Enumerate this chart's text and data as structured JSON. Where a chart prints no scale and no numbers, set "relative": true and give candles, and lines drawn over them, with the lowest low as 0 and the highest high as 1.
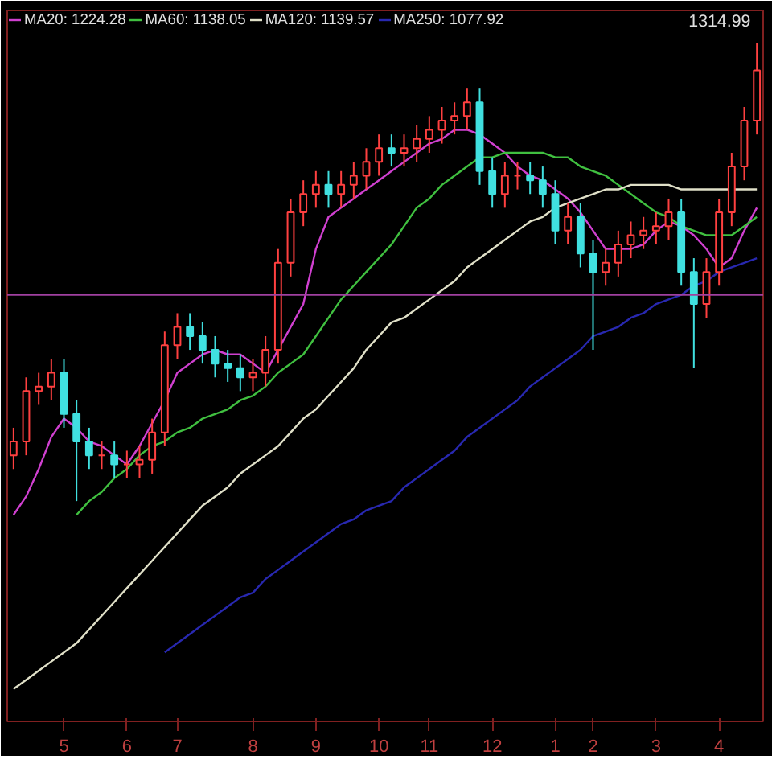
{
  "chart_data": {
    "type": "candlestick",
    "relative": true,
    "categories": [
      null,
      null,
      null,
      null,
      "5",
      null,
      null,
      null,
      null,
      "6",
      null,
      null,
      null,
      "7",
      null,
      null,
      null,
      null,
      null,
      "8",
      null,
      null,
      null,
      null,
      "9",
      null,
      null,
      null,
      null,
      "10",
      null,
      null,
      null,
      "11",
      null,
      null,
      null,
      null,
      "12",
      null,
      null,
      null,
      null,
      "1",
      null,
      null,
      "2",
      null,
      null,
      null,
      null,
      "3",
      null,
      null,
      null,
      null,
      "4",
      null,
      null,
      null
    ],
    "ohlc": [
      [
        0.1,
        0.16,
        0.07,
        0.13
      ],
      [
        0.13,
        0.27,
        0.1,
        0.24
      ],
      [
        0.24,
        0.28,
        0.21,
        0.25
      ],
      [
        0.25,
        0.31,
        0.22,
        0.28
      ],
      [
        0.28,
        0.31,
        0.16,
        0.19
      ],
      [
        0.19,
        0.22,
        0.0,
        0.13
      ],
      [
        0.13,
        0.16,
        0.07,
        0.1
      ],
      [
        0.1,
        0.13,
        0.07,
        0.1
      ],
      [
        0.1,
        0.13,
        0.05,
        0.08
      ],
      [
        0.08,
        0.11,
        0.05,
        0.08
      ],
      [
        0.08,
        0.12,
        0.05,
        0.09
      ],
      [
        0.09,
        0.18,
        0.06,
        0.15
      ],
      [
        0.15,
        0.37,
        0.12,
        0.34
      ],
      [
        0.34,
        0.41,
        0.31,
        0.38
      ],
      [
        0.38,
        0.41,
        0.33,
        0.36
      ],
      [
        0.36,
        0.39,
        0.3,
        0.33
      ],
      [
        0.33,
        0.36,
        0.27,
        0.3
      ],
      [
        0.3,
        0.33,
        0.26,
        0.29
      ],
      [
        0.29,
        0.32,
        0.24,
        0.27
      ],
      [
        0.27,
        0.31,
        0.24,
        0.28
      ],
      [
        0.28,
        0.36,
        0.25,
        0.33
      ],
      [
        0.33,
        0.55,
        0.3,
        0.52
      ],
      [
        0.52,
        0.66,
        0.49,
        0.63
      ],
      [
        0.63,
        0.7,
        0.6,
        0.67
      ],
      [
        0.67,
        0.72,
        0.64,
        0.69
      ],
      [
        0.69,
        0.72,
        0.64,
        0.67
      ],
      [
        0.67,
        0.72,
        0.64,
        0.69
      ],
      [
        0.69,
        0.74,
        0.66,
        0.71
      ],
      [
        0.71,
        0.77,
        0.68,
        0.74
      ],
      [
        0.74,
        0.8,
        0.71,
        0.77
      ],
      [
        0.77,
        0.8,
        0.73,
        0.76
      ],
      [
        0.76,
        0.8,
        0.73,
        0.77
      ],
      [
        0.77,
        0.82,
        0.74,
        0.79
      ],
      [
        0.79,
        0.84,
        0.76,
        0.81
      ],
      [
        0.81,
        0.86,
        0.78,
        0.83
      ],
      [
        0.83,
        0.87,
        0.8,
        0.84
      ],
      [
        0.84,
        0.9,
        0.81,
        0.87
      ],
      [
        0.87,
        0.9,
        0.69,
        0.72
      ],
      [
        0.72,
        0.75,
        0.64,
        0.67
      ],
      [
        0.67,
        0.74,
        0.64,
        0.71
      ],
      [
        0.71,
        0.74,
        0.68,
        0.71
      ],
      [
        0.71,
        0.74,
        0.67,
        0.7
      ],
      [
        0.7,
        0.73,
        0.64,
        0.67
      ],
      [
        0.67,
        0.7,
        0.56,
        0.59
      ],
      [
        0.59,
        0.65,
        0.56,
        0.62
      ],
      [
        0.62,
        0.65,
        0.51,
        0.54
      ],
      [
        0.54,
        0.57,
        0.33,
        0.5
      ],
      [
        0.5,
        0.55,
        0.47,
        0.52
      ],
      [
        0.52,
        0.59,
        0.49,
        0.56
      ],
      [
        0.56,
        0.61,
        0.53,
        0.58
      ],
      [
        0.58,
        0.62,
        0.55,
        0.59
      ],
      [
        0.59,
        0.63,
        0.56,
        0.6
      ],
      [
        0.6,
        0.66,
        0.57,
        0.63
      ],
      [
        0.63,
        0.66,
        0.47,
        0.5
      ],
      [
        0.5,
        0.53,
        0.29,
        0.43
      ],
      [
        0.43,
        0.53,
        0.4,
        0.5
      ],
      [
        0.5,
        0.66,
        0.47,
        0.63
      ],
      [
        0.63,
        0.76,
        0.6,
        0.73
      ],
      [
        0.73,
        0.86,
        0.7,
        0.83
      ],
      [
        0.83,
        1.0,
        0.8,
        0.94
      ]
    ],
    "colors": [
      "#ff4040",
      "#ff4040",
      "#ff4040",
      "#ff4040",
      "#40e0e0",
      "#40e0e0",
      "#40e0e0",
      "#ff4040",
      "#40e0e0",
      "#ff4040",
      "#ff4040",
      "#ff4040",
      "#ff4040",
      "#ff4040",
      "#40e0e0",
      "#40e0e0",
      "#40e0e0",
      "#40e0e0",
      "#40e0e0",
      "#ff4040",
      "#ff4040",
      "#ff4040",
      "#ff4040",
      "#ff4040",
      "#ff4040",
      "#40e0e0",
      "#ff4040",
      "#ff4040",
      "#ff4040",
      "#ff4040",
      "#40e0e0",
      "#ff4040",
      "#ff4040",
      "#ff4040",
      "#ff4040",
      "#ff4040",
      "#ff4040",
      "#40e0e0",
      "#40e0e0",
      "#ff4040",
      "#ff4040",
      "#40e0e0",
      "#40e0e0",
      "#40e0e0",
      "#ff4040",
      "#40e0e0",
      "#40e0e0",
      "#ff4040",
      "#ff4040",
      "#ff4040",
      "#ff4040",
      "#ff4040",
      "#ff4040",
      "#40e0e0",
      "#40e0e0",
      "#ff4040",
      "#ff4040",
      "#ff4040",
      "#ff4040",
      "#ff4040"
    ],
    "series": [
      {
        "type": "line",
        "name": "MA20: 1224.28",
        "color": "#d040d0",
        "values": [
          -0.03,
          0.01,
          0.07,
          0.14,
          0.18,
          0.16,
          0.13,
          0.12,
          0.1,
          0.08,
          0.12,
          0.17,
          0.22,
          0.28,
          0.3,
          0.32,
          0.33,
          0.32,
          0.32,
          0.3,
          0.28,
          0.33,
          0.38,
          0.43,
          0.55,
          0.62,
          0.64,
          0.66,
          0.68,
          0.7,
          0.72,
          0.74,
          0.76,
          0.78,
          0.79,
          0.81,
          0.81,
          0.8,
          0.78,
          0.76,
          0.73,
          0.71,
          0.7,
          0.68,
          0.66,
          0.63,
          0.59,
          0.55,
          0.55,
          0.55,
          0.56,
          0.59,
          0.61,
          0.6,
          0.58,
          0.55,
          0.51,
          0.53,
          0.59,
          0.64
        ]
      },
      {
        "type": "line",
        "name": "MA60: 1138.05",
        "color": "#40c040",
        "values": [
          null,
          null,
          null,
          null,
          null,
          -0.03,
          0.0,
          0.02,
          0.05,
          0.07,
          0.1,
          0.12,
          0.13,
          0.15,
          0.16,
          0.18,
          0.19,
          0.2,
          0.22,
          0.23,
          0.25,
          0.28,
          0.3,
          0.32,
          0.36,
          0.4,
          0.44,
          0.47,
          0.5,
          0.53,
          0.56,
          0.6,
          0.64,
          0.66,
          0.69,
          0.71,
          0.73,
          0.75,
          0.75,
          0.76,
          0.76,
          0.76,
          0.76,
          0.75,
          0.75,
          0.73,
          0.72,
          0.71,
          0.69,
          0.67,
          0.65,
          0.63,
          0.62,
          0.6,
          0.59,
          0.58,
          0.58,
          0.58,
          0.6,
          0.62
        ]
      },
      {
        "type": "line",
        "name": "MA120: 1139.57",
        "color": "#e0e0c8",
        "values": [
          -0.41,
          -0.39,
          -0.37,
          -0.35,
          -0.33,
          -0.31,
          -0.28,
          -0.25,
          -0.22,
          -0.19,
          -0.16,
          -0.13,
          -0.1,
          -0.07,
          -0.04,
          -0.01,
          0.01,
          0.03,
          0.06,
          0.08,
          0.1,
          0.12,
          0.15,
          0.18,
          0.2,
          0.23,
          0.26,
          0.29,
          0.33,
          0.36,
          0.39,
          0.4,
          0.42,
          0.44,
          0.46,
          0.48,
          0.51,
          0.53,
          0.55,
          0.57,
          0.59,
          0.61,
          0.62,
          0.64,
          0.65,
          0.66,
          0.67,
          0.68,
          0.68,
          0.69,
          0.69,
          0.69,
          0.69,
          0.68,
          0.68,
          0.68,
          0.68,
          0.68,
          0.68,
          0.68
        ]
      },
      {
        "type": "line",
        "name": "MA250: 1077.92",
        "color": "#2828b0",
        "values": [
          null,
          null,
          null,
          null,
          null,
          null,
          null,
          null,
          null,
          null,
          null,
          null,
          -0.33,
          -0.31,
          -0.29,
          -0.27,
          -0.25,
          -0.23,
          -0.21,
          -0.2,
          -0.17,
          -0.15,
          -0.13,
          -0.11,
          -0.09,
          -0.07,
          -0.05,
          -0.04,
          -0.02,
          -0.01,
          0.0,
          0.03,
          0.05,
          0.07,
          0.09,
          0.11,
          0.14,
          0.16,
          0.18,
          0.2,
          0.22,
          0.25,
          0.27,
          0.29,
          0.31,
          0.33,
          0.36,
          0.37,
          0.38,
          0.4,
          0.41,
          0.43,
          0.44,
          0.45,
          0.47,
          0.48,
          0.5,
          0.51,
          0.52,
          0.53
        ]
      }
    ],
    "ref_lines": [
      {
        "axis": "y",
        "value": 0.45,
        "color": "#a040a0"
      }
    ],
    "annotations": [
      "1314.99"
    ],
    "legend": "top left",
    "grid": false,
    "line_style": "solid",
    "marker": "none"
  }
}
